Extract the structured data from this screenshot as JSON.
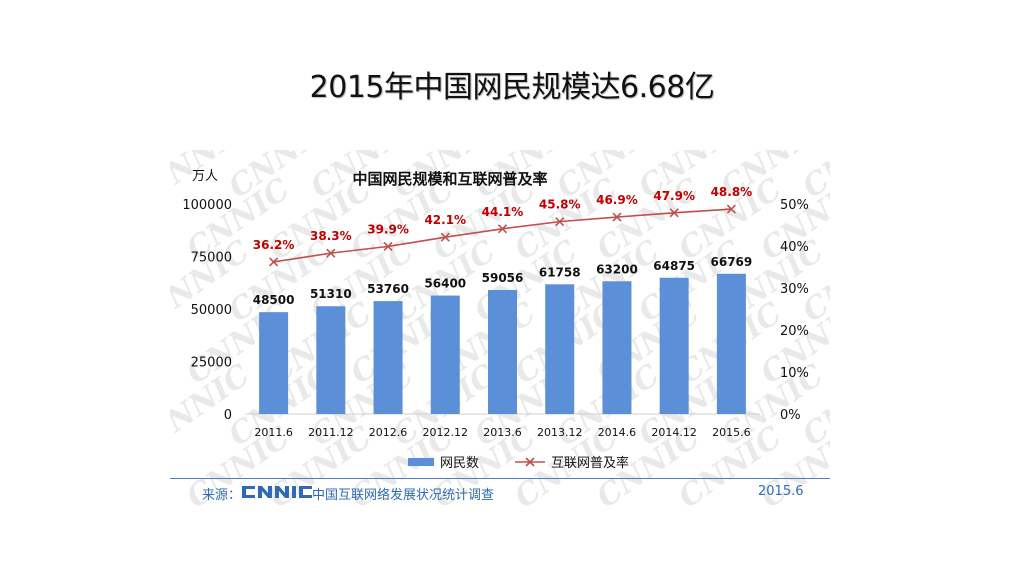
{
  "slide": {
    "title": "2015年中国网民规模达6.68亿"
  },
  "chart_data": {
    "type": "bar",
    "title": "中国网民规模和互联网普及率",
    "ylabel": "万人",
    "categories": [
      "2011.6",
      "2011.12",
      "2012.6",
      "2012.12",
      "2013.6",
      "2013.12",
      "2014.6",
      "2014.12",
      "2015.6"
    ],
    "ylim": [
      0,
      100000
    ],
    "yticks": [
      "100000",
      "75000",
      "50000",
      "25000",
      "0"
    ],
    "y2lim": [
      0,
      50
    ],
    "y2ticks": [
      "50%",
      "40%",
      "30%",
      "20%",
      "10%",
      "0%"
    ],
    "grid": false,
    "series": [
      {
        "name": "网民数",
        "type": "bar",
        "color": "#5b8fd8",
        "values": [
          48500,
          51310,
          53760,
          56400,
          59056,
          61758,
          63200,
          64875,
          66769
        ],
        "labels": [
          "48500",
          "51310",
          "53760",
          "56400",
          "59056",
          "61758",
          "63200",
          "64875",
          "66769"
        ]
      },
      {
        "name": "互联网普及率",
        "type": "line",
        "axis": "right",
        "color": "#c0504d",
        "values": [
          36.2,
          38.3,
          39.9,
          42.1,
          44.1,
          45.8,
          46.9,
          47.9,
          48.8
        ],
        "labels": [
          "36.2%",
          "38.3%",
          "39.9%",
          "42.1%",
          "44.1%",
          "45.8%",
          "46.9%",
          "47.9%",
          "48.8%"
        ]
      }
    ],
    "legend": {
      "position": "bottom",
      "bar_label": "网民数",
      "line_label": "互联网普及率"
    },
    "watermark": "CNNIC"
  },
  "footer": {
    "source_label": "来源：",
    "logo_text": "CNNIC",
    "source_text": "中国互联网络发展状况统计调查",
    "date": "2015.6"
  },
  "colors": {
    "bar": "#5b8fd8",
    "line": "#c0504d",
    "pct_text": "#c00000",
    "footer": "#2e6ab6"
  }
}
